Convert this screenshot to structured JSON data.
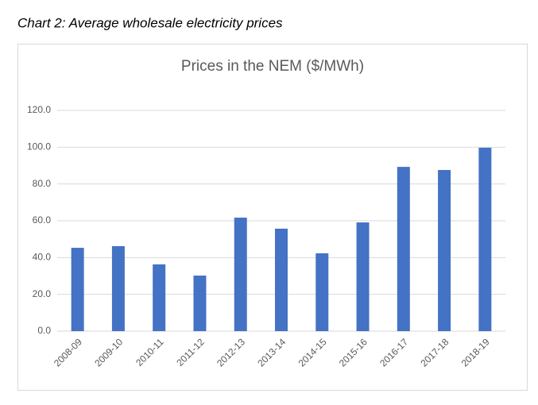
{
  "caption": "Chart 2: Average wholesale electricity prices",
  "chart_data": {
    "type": "bar",
    "title": "Prices in the NEM ($/MWh)",
    "categories": [
      "2008-09",
      "2009-10",
      "2010-11",
      "2011-12",
      "2012-13",
      "2013-14",
      "2014-15",
      "2015-16",
      "2016-17",
      "2017-18",
      "2018-19"
    ],
    "values": [
      45.3,
      46.2,
      36.3,
      30.2,
      61.7,
      55.7,
      42.3,
      59.1,
      89.3,
      87.6,
      99.7
    ],
    "color": "#4472c4",
    "ylim": [
      0,
      120
    ],
    "yticks": [
      {
        "value": 0,
        "label": "0.0"
      },
      {
        "value": 20,
        "label": "20.0"
      },
      {
        "value": 40,
        "label": "40.0"
      },
      {
        "value": 60,
        "label": "60.0"
      },
      {
        "value": 80,
        "label": "80.0"
      },
      {
        "value": 100,
        "label": "100.0"
      },
      {
        "value": 120,
        "label": "120.0"
      }
    ],
    "grid": true
  }
}
